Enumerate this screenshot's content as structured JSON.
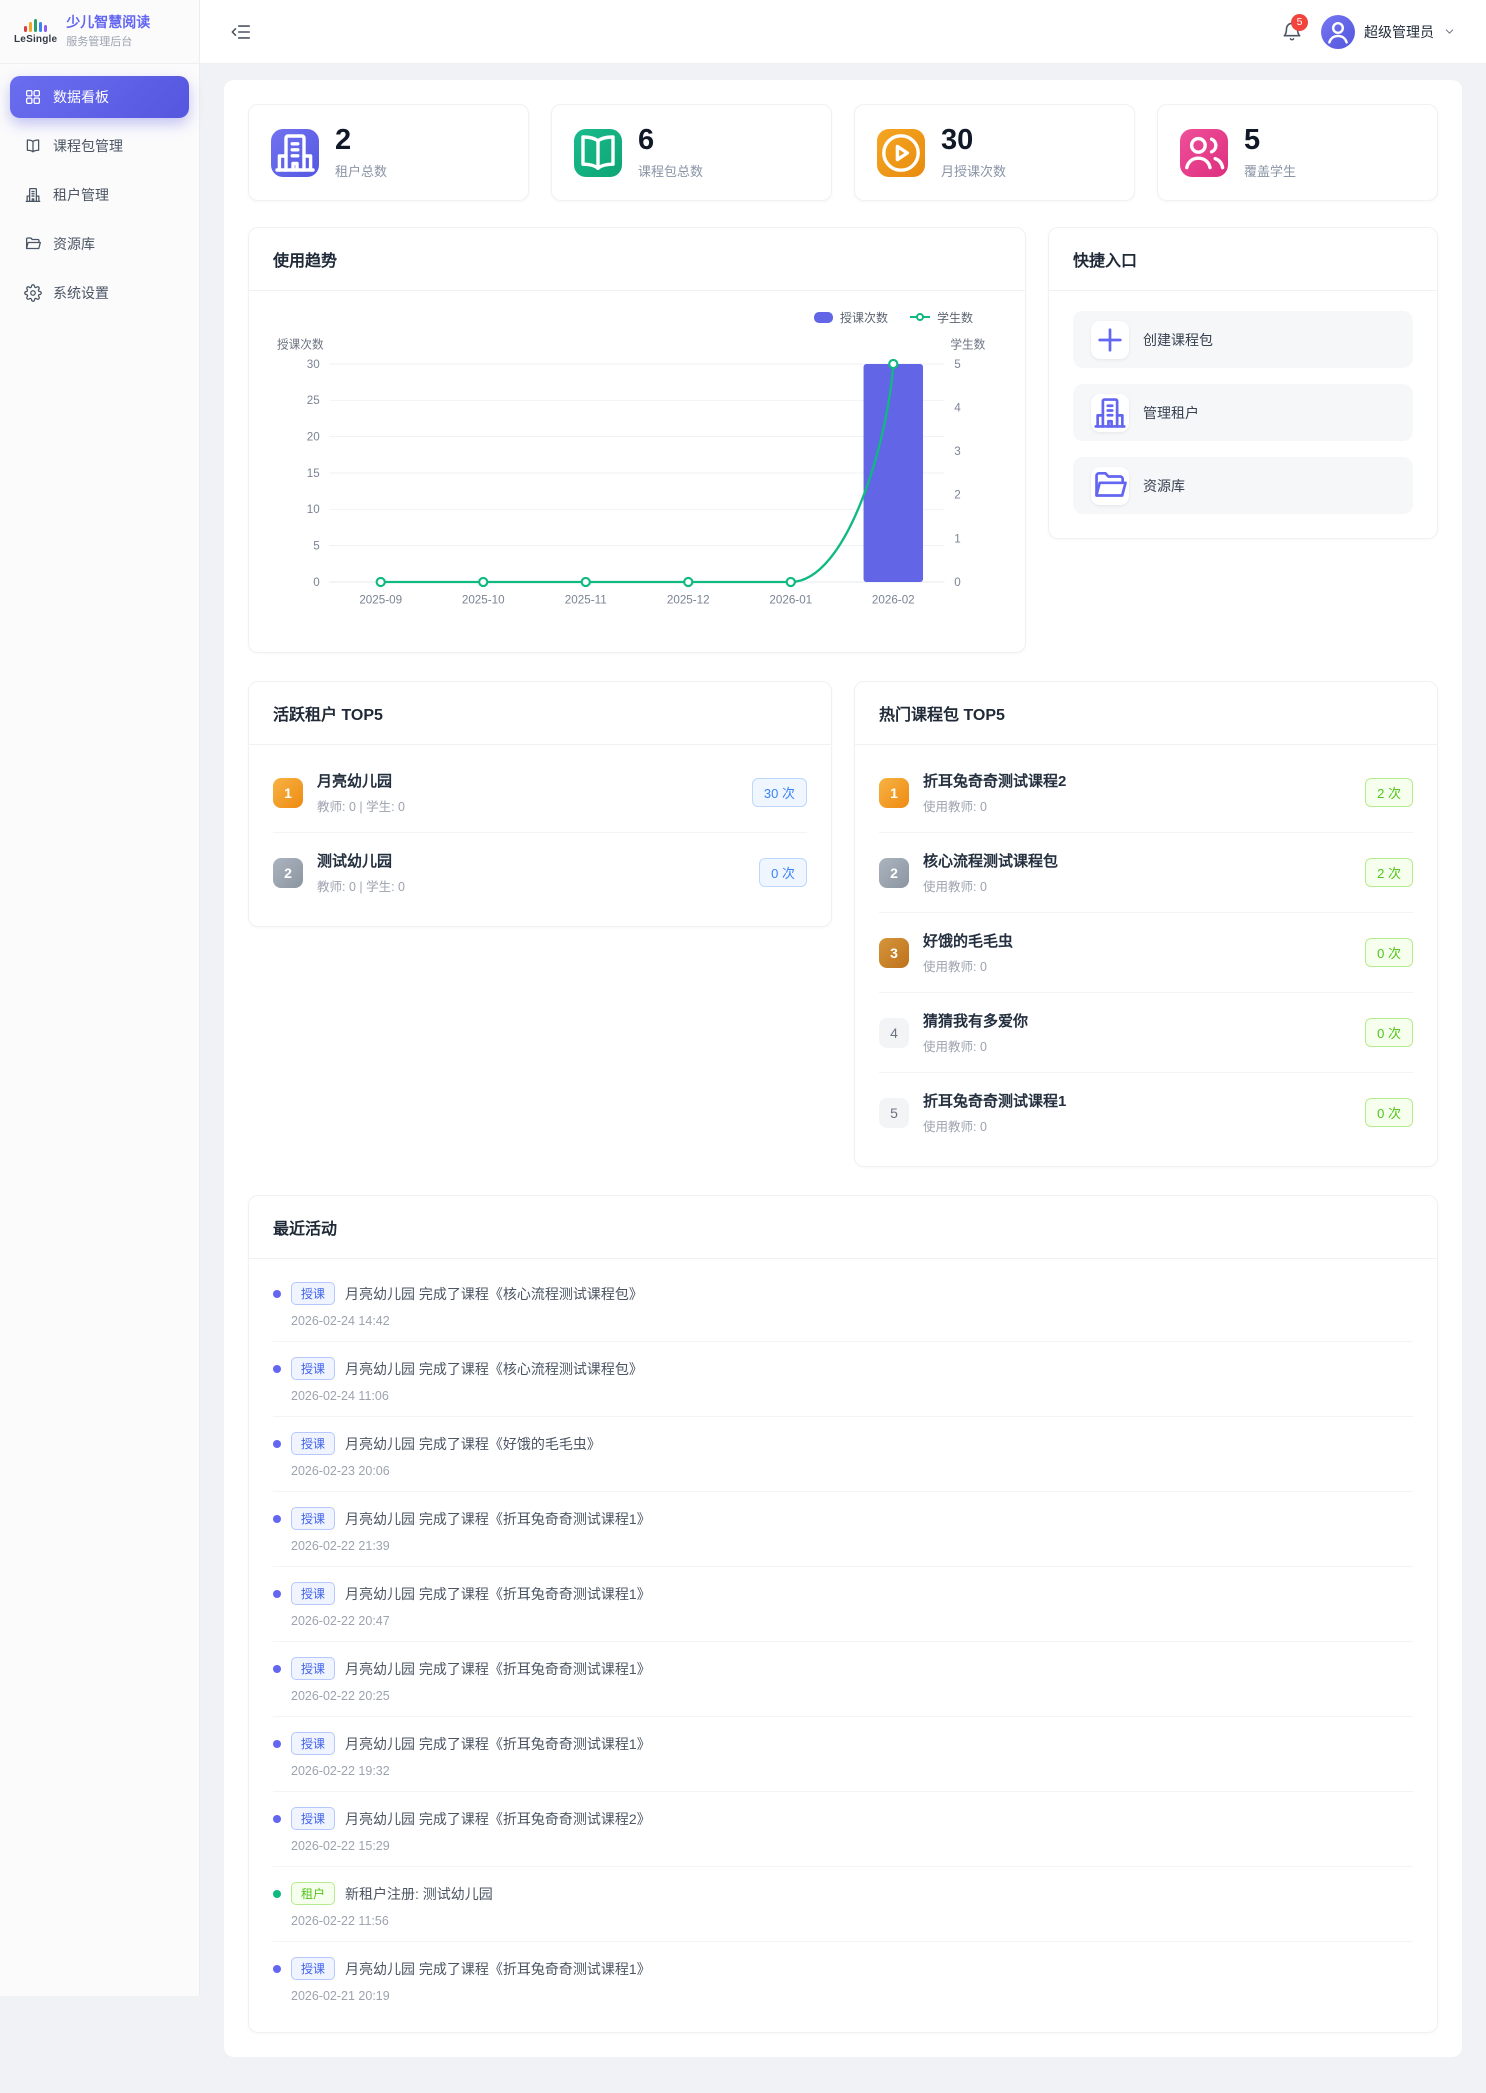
{
  "brand": {
    "logo_text": "LeSingle",
    "title": "少儿智慧阅读",
    "subtitle": "服务管理后台"
  },
  "sidebar": {
    "items": [
      {
        "key": "dashboard",
        "icon": "dashboard-icon",
        "label": "数据看板",
        "active": true
      },
      {
        "key": "packages",
        "icon": "book-icon",
        "label": "课程包管理",
        "active": false
      },
      {
        "key": "tenants",
        "icon": "building-icon",
        "label": "租户管理",
        "active": false
      },
      {
        "key": "resources",
        "icon": "folder-icon",
        "label": "资源库",
        "active": false
      },
      {
        "key": "settings",
        "icon": "gear-icon",
        "label": "系统设置",
        "active": false
      }
    ]
  },
  "header": {
    "notification_count": "5",
    "user_name": "超级管理员"
  },
  "stats": [
    {
      "key": "tenants",
      "icon": "building-icon",
      "color": "purple",
      "value": "2",
      "label": "租户总数"
    },
    {
      "key": "packages",
      "icon": "book-icon",
      "color": "green",
      "value": "6",
      "label": "课程包总数"
    },
    {
      "key": "monthly-sessions",
      "icon": "play-circle-icon",
      "color": "orange",
      "value": "30",
      "label": "月授课次数"
    },
    {
      "key": "students",
      "icon": "users-icon",
      "color": "pink",
      "value": "5",
      "label": "覆盖学生"
    }
  ],
  "usage_trend": {
    "title": "使用趋势"
  },
  "chart_data": {
    "type": "bar+line",
    "title": "使用趋势",
    "categories": [
      "2025-09",
      "2025-10",
      "2025-11",
      "2025-12",
      "2026-01",
      "2026-02"
    ],
    "series": [
      {
        "name": "授课次数",
        "type": "bar",
        "axis": "left",
        "color": "#6165e6",
        "values": [
          0,
          0,
          0,
          0,
          0,
          30
        ]
      },
      {
        "name": "学生数",
        "type": "line",
        "axis": "right",
        "color": "#10b981",
        "values": [
          0,
          0,
          0,
          0,
          0,
          5
        ]
      }
    ],
    "left_axis": {
      "label": "授课次数",
      "min": 0,
      "max": 30,
      "step": 5
    },
    "right_axis": {
      "label": "学生数",
      "min": 0,
      "max": 5,
      "step": 1
    },
    "legend_position": "top-right",
    "grid": true
  },
  "quick_entry": {
    "title": "快捷入口",
    "items": [
      {
        "key": "create-package",
        "icon": "plus-icon",
        "label": "创建课程包"
      },
      {
        "key": "manage-tenants",
        "icon": "building-icon",
        "label": "管理租户"
      },
      {
        "key": "resource-library",
        "icon": "folder-icon",
        "label": "资源库"
      }
    ]
  },
  "active_tenants": {
    "title": "活跃租户 TOP5",
    "items": [
      {
        "rank": "1",
        "name": "月亮幼儿园",
        "sub": "教师: 0 | 学生: 0",
        "count": "30 次"
      },
      {
        "rank": "2",
        "name": "测试幼儿园",
        "sub": "教师: 0 | 学生: 0",
        "count": "0 次"
      }
    ]
  },
  "hot_packages": {
    "title": "热门课程包 TOP5",
    "items": [
      {
        "rank": "1",
        "name": "折耳兔奇奇测试课程2",
        "sub": "使用教师: 0",
        "count": "2 次"
      },
      {
        "rank": "2",
        "name": "核心流程测试课程包",
        "sub": "使用教师: 0",
        "count": "2 次"
      },
      {
        "rank": "3",
        "name": "好饿的毛毛虫",
        "sub": "使用教师: 0",
        "count": "0 次"
      },
      {
        "rank": "4",
        "name": "猜猜我有多爱你",
        "sub": "使用教师: 0",
        "count": "0 次"
      },
      {
        "rank": "5",
        "name": "折耳兔奇奇测试课程1",
        "sub": "使用教师: 0",
        "count": "0 次"
      }
    ]
  },
  "recent_activity": {
    "title": "最近活动",
    "items": [
      {
        "type": "teach",
        "tag": "授课",
        "text": "月亮幼儿园 完成了课程《核心流程测试课程包》",
        "time": "2026-02-24 14:42"
      },
      {
        "type": "teach",
        "tag": "授课",
        "text": "月亮幼儿园 完成了课程《核心流程测试课程包》",
        "time": "2026-02-24 11:06"
      },
      {
        "type": "teach",
        "tag": "授课",
        "text": "月亮幼儿园 完成了课程《好饿的毛毛虫》",
        "time": "2026-02-23 20:06"
      },
      {
        "type": "teach",
        "tag": "授课",
        "text": "月亮幼儿园 完成了课程《折耳兔奇奇测试课程1》",
        "time": "2026-02-22 21:39"
      },
      {
        "type": "teach",
        "tag": "授课",
        "text": "月亮幼儿园 完成了课程《折耳兔奇奇测试课程1》",
        "time": "2026-02-22 20:47"
      },
      {
        "type": "teach",
        "tag": "授课",
        "text": "月亮幼儿园 完成了课程《折耳兔奇奇测试课程1》",
        "time": "2026-02-22 20:25"
      },
      {
        "type": "teach",
        "tag": "授课",
        "text": "月亮幼儿园 完成了课程《折耳兔奇奇测试课程1》",
        "time": "2026-02-22 19:32"
      },
      {
        "type": "teach",
        "tag": "授课",
        "text": "月亮幼儿园 完成了课程《折耳兔奇奇测试课程2》",
        "time": "2026-02-22 15:29"
      },
      {
        "type": "tenant",
        "tag": "租户",
        "text": "新租户注册: 测试幼儿园",
        "time": "2026-02-22 11:56"
      },
      {
        "type": "teach",
        "tag": "授课",
        "text": "月亮幼儿园 完成了课程《折耳兔奇奇测试课程1》",
        "time": "2026-02-21 20:19"
      }
    ]
  },
  "colors": {
    "primary": "#6366f1",
    "success": "#10b981",
    "warning": "#f59e0b",
    "pink": "#ec4899",
    "danger": "#f0443c",
    "bar": "#6165e6",
    "line": "#10b981",
    "logo_bars": [
      "#e23c3c",
      "#f5a623",
      "#2f9e6e",
      "#3b82f6",
      "#8b5cf6"
    ]
  }
}
